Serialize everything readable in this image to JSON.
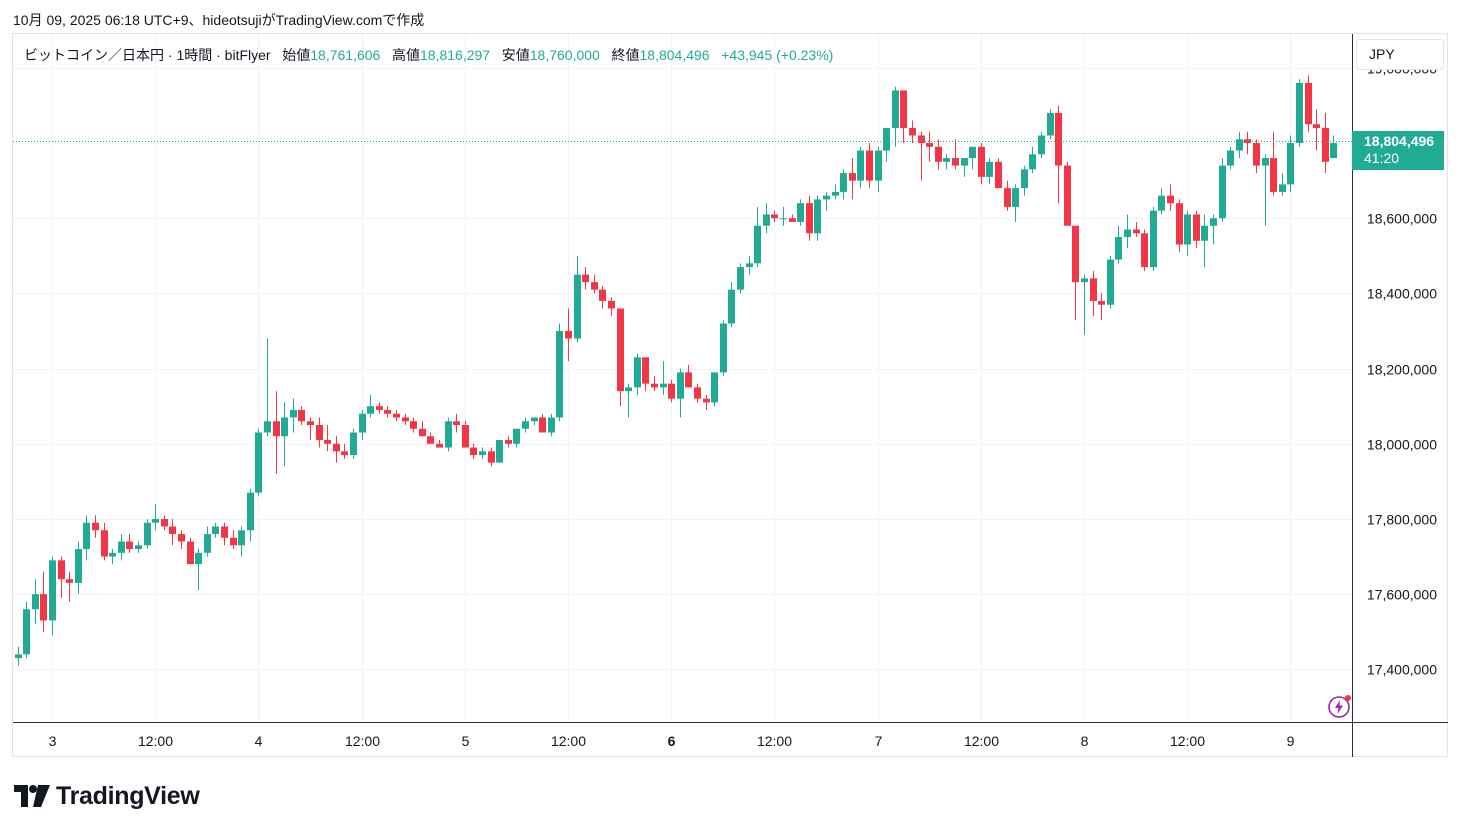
{
  "caption": "10月 09, 2025 06:18 UTC+9、hideotsujiがTradingView.comで作成",
  "legend": {
    "symbol": "ビットコイン／日本円 · 1時間 · bitFlyer",
    "open_label": "始値",
    "open": "18,761,606",
    "high_label": "高値",
    "high": "18,816,297",
    "low_label": "安値",
    "low": "18,760,000",
    "close_label": "終値",
    "close": "18,804,496",
    "change": "+43,945 (+0.23%)"
  },
  "currency": "JPY",
  "last_price": {
    "price": "18,804,496",
    "countdown": "41:20"
  },
  "brand": "TradingView",
  "colors": {
    "up": "#22ab94",
    "down": "#f23645",
    "grid": "#f0f3fa",
    "axis_text": "#131722",
    "accent": "#22ab94"
  },
  "chart_data": {
    "type": "candlestick",
    "ylim": [
      17260000,
      19090000
    ],
    "y_ticks": [
      17400000,
      17600000,
      17800000,
      18000000,
      18200000,
      18400000,
      18600000,
      18800000,
      19000000
    ],
    "y_tick_labels": [
      "17,400,000",
      "17,600,000",
      "17,800,000",
      "18,000,000",
      "18,200,000",
      "18,400,000",
      "18,600,000",
      "18,800,000",
      "19,000,000"
    ],
    "x_labels": [
      "3",
      "12:00",
      "4",
      "12:00",
      "5",
      "12:00",
      "6",
      "12:00",
      "7",
      "12:00",
      "8",
      "12:00",
      "9"
    ],
    "x_label_bars": [
      4,
      16,
      28,
      40,
      52,
      64,
      76,
      88,
      100,
      112,
      124,
      136,
      148
    ],
    "x_bold_labels": [
      "6"
    ],
    "last_price_value": 18804496,
    "candles": [
      [
        17430000,
        17460000,
        17410000,
        17440000
      ],
      [
        17440000,
        17580000,
        17430000,
        17560000
      ],
      [
        17560000,
        17640000,
        17520000,
        17600000
      ],
      [
        17600000,
        17660000,
        17500000,
        17530000
      ],
      [
        17530000,
        17700000,
        17490000,
        17690000
      ],
      [
        17690000,
        17700000,
        17590000,
        17640000
      ],
      [
        17640000,
        17660000,
        17580000,
        17630000
      ],
      [
        17630000,
        17740000,
        17600000,
        17720000
      ],
      [
        17720000,
        17810000,
        17690000,
        17790000
      ],
      [
        17790000,
        17810000,
        17750000,
        17770000
      ],
      [
        17770000,
        17790000,
        17690000,
        17700000
      ],
      [
        17700000,
        17720000,
        17680000,
        17710000
      ],
      [
        17710000,
        17760000,
        17690000,
        17740000
      ],
      [
        17740000,
        17760000,
        17710000,
        17720000
      ],
      [
        17720000,
        17740000,
        17710000,
        17730000
      ],
      [
        17730000,
        17800000,
        17720000,
        17790000
      ],
      [
        17790000,
        17840000,
        17770000,
        17800000
      ],
      [
        17800000,
        17810000,
        17770000,
        17780000
      ],
      [
        17780000,
        17800000,
        17730000,
        17760000
      ],
      [
        17760000,
        17770000,
        17720000,
        17740000
      ],
      [
        17740000,
        17750000,
        17680000,
        17680000
      ],
      [
        17680000,
        17720000,
        17610000,
        17710000
      ],
      [
        17710000,
        17780000,
        17700000,
        17760000
      ],
      [
        17760000,
        17790000,
        17750000,
        17780000
      ],
      [
        17780000,
        17790000,
        17730000,
        17750000
      ],
      [
        17750000,
        17770000,
        17720000,
        17730000
      ],
      [
        17730000,
        17780000,
        17700000,
        17770000
      ],
      [
        17770000,
        17880000,
        17740000,
        17870000
      ],
      [
        17870000,
        18040000,
        17860000,
        18030000
      ],
      [
        18030000,
        18280000,
        18020000,
        18060000
      ],
      [
        18060000,
        18140000,
        17920000,
        18020000
      ],
      [
        18020000,
        18110000,
        17940000,
        18070000
      ],
      [
        18070000,
        18120000,
        18030000,
        18090000
      ],
      [
        18090000,
        18100000,
        18050000,
        18060000
      ],
      [
        18060000,
        18070000,
        18010000,
        18050000
      ],
      [
        18050000,
        18070000,
        17990000,
        18010000
      ],
      [
        18010000,
        18050000,
        17980000,
        18000000
      ],
      [
        18000000,
        18020000,
        17950000,
        17980000
      ],
      [
        17980000,
        18000000,
        17960000,
        17970000
      ],
      [
        17970000,
        18040000,
        17960000,
        18030000
      ],
      [
        18030000,
        18090000,
        18010000,
        18080000
      ],
      [
        18080000,
        18130000,
        18070000,
        18100000
      ],
      [
        18100000,
        18110000,
        18080000,
        18090000
      ],
      [
        18090000,
        18100000,
        18070000,
        18080000
      ],
      [
        18080000,
        18090000,
        18060000,
        18070000
      ],
      [
        18070000,
        18080000,
        18050000,
        18060000
      ],
      [
        18060000,
        18070000,
        18030000,
        18040000
      ],
      [
        18040000,
        18060000,
        18020000,
        18020000
      ],
      [
        18020000,
        18030000,
        18000000,
        18000000
      ],
      [
        18000000,
        18010000,
        17990000,
        17990000
      ],
      [
        17990000,
        18070000,
        17980000,
        18060000
      ],
      [
        18060000,
        18080000,
        18030000,
        18050000
      ],
      [
        18050000,
        18060000,
        17990000,
        17990000
      ],
      [
        17990000,
        18000000,
        17960000,
        17970000
      ],
      [
        17970000,
        17990000,
        17960000,
        17980000
      ],
      [
        17980000,
        17990000,
        17940000,
        17950000
      ],
      [
        17950000,
        18010000,
        17950000,
        18010000
      ],
      [
        18010000,
        18020000,
        17990000,
        18000000
      ],
      [
        18000000,
        18040000,
        17990000,
        18040000
      ],
      [
        18040000,
        18070000,
        18030000,
        18060000
      ],
      [
        18060000,
        18070000,
        18050000,
        18070000
      ],
      [
        18070000,
        18080000,
        18030000,
        18030000
      ],
      [
        18030000,
        18080000,
        18020000,
        18070000
      ],
      [
        18070000,
        18320000,
        18060000,
        18300000
      ],
      [
        18300000,
        18360000,
        18220000,
        18280000
      ],
      [
        18280000,
        18500000,
        18270000,
        18450000
      ],
      [
        18450000,
        18470000,
        18410000,
        18430000
      ],
      [
        18430000,
        18450000,
        18400000,
        18410000
      ],
      [
        18410000,
        18420000,
        18360000,
        18380000
      ],
      [
        18380000,
        18390000,
        18340000,
        18360000
      ],
      [
        18360000,
        18360000,
        18100000,
        18140000
      ],
      [
        18140000,
        18160000,
        18070000,
        18150000
      ],
      [
        18150000,
        18240000,
        18130000,
        18230000
      ],
      [
        18230000,
        18230000,
        18140000,
        18160000
      ],
      [
        18160000,
        18180000,
        18140000,
        18150000
      ],
      [
        18150000,
        18220000,
        18130000,
        18160000
      ],
      [
        18160000,
        18170000,
        18110000,
        18120000
      ],
      [
        18120000,
        18200000,
        18070000,
        18190000
      ],
      [
        18190000,
        18210000,
        18150000,
        18150000
      ],
      [
        18150000,
        18160000,
        18110000,
        18120000
      ],
      [
        18120000,
        18130000,
        18090000,
        18110000
      ],
      [
        18110000,
        18190000,
        18100000,
        18190000
      ],
      [
        18190000,
        18330000,
        18180000,
        18320000
      ],
      [
        18320000,
        18430000,
        18310000,
        18410000
      ],
      [
        18410000,
        18480000,
        18400000,
        18470000
      ],
      [
        18470000,
        18500000,
        18450000,
        18480000
      ],
      [
        18480000,
        18630000,
        18470000,
        18580000
      ],
      [
        18580000,
        18640000,
        18560000,
        18610000
      ],
      [
        18610000,
        18620000,
        18590000,
        18600000
      ],
      [
        18600000,
        18630000,
        18580000,
        18600000
      ],
      [
        18600000,
        18610000,
        18590000,
        18590000
      ],
      [
        18590000,
        18650000,
        18580000,
        18640000
      ],
      [
        18640000,
        18660000,
        18540000,
        18560000
      ],
      [
        18560000,
        18660000,
        18540000,
        18650000
      ],
      [
        18650000,
        18670000,
        18620000,
        18660000
      ],
      [
        18660000,
        18690000,
        18650000,
        18670000
      ],
      [
        18670000,
        18730000,
        18650000,
        18720000
      ],
      [
        18720000,
        18760000,
        18650000,
        18700000
      ],
      [
        18700000,
        18790000,
        18680000,
        18780000
      ],
      [
        18780000,
        18800000,
        18680000,
        18700000
      ],
      [
        18700000,
        18790000,
        18670000,
        18780000
      ],
      [
        18780000,
        18840000,
        18750000,
        18840000
      ],
      [
        18840000,
        18950000,
        18790000,
        18940000
      ],
      [
        18940000,
        18930000,
        18800000,
        18840000
      ],
      [
        18840000,
        18860000,
        18800000,
        18820000
      ],
      [
        18820000,
        18830000,
        18700000,
        18800000
      ],
      [
        18800000,
        18830000,
        18750000,
        18790000
      ],
      [
        18790000,
        18810000,
        18730000,
        18750000
      ],
      [
        18750000,
        18770000,
        18730000,
        18760000
      ],
      [
        18760000,
        18810000,
        18730000,
        18740000
      ],
      [
        18740000,
        18760000,
        18710000,
        18760000
      ],
      [
        18760000,
        18790000,
        18730000,
        18790000
      ],
      [
        18790000,
        18800000,
        18690000,
        18710000
      ],
      [
        18710000,
        18760000,
        18690000,
        18750000
      ],
      [
        18750000,
        18760000,
        18690000,
        18680000
      ],
      [
        18680000,
        18700000,
        18620000,
        18630000
      ],
      [
        18630000,
        18690000,
        18590000,
        18680000
      ],
      [
        18680000,
        18740000,
        18660000,
        18730000
      ],
      [
        18730000,
        18790000,
        18720000,
        18770000
      ],
      [
        18770000,
        18830000,
        18760000,
        18820000
      ],
      [
        18820000,
        18890000,
        18810000,
        18880000
      ],
      [
        18880000,
        18900000,
        18640000,
        18740000
      ],
      [
        18740000,
        18750000,
        18580000,
        18580000
      ],
      [
        18580000,
        18580000,
        18330000,
        18430000
      ],
      [
        18430000,
        18450000,
        18290000,
        18440000
      ],
      [
        18440000,
        18460000,
        18340000,
        18380000
      ],
      [
        18380000,
        18400000,
        18330000,
        18370000
      ],
      [
        18370000,
        18500000,
        18360000,
        18490000
      ],
      [
        18490000,
        18580000,
        18480000,
        18550000
      ],
      [
        18550000,
        18610000,
        18520000,
        18570000
      ],
      [
        18570000,
        18590000,
        18550000,
        18560000
      ],
      [
        18560000,
        18570000,
        18460000,
        18470000
      ],
      [
        18470000,
        18630000,
        18460000,
        18620000
      ],
      [
        18620000,
        18680000,
        18610000,
        18660000
      ],
      [
        18660000,
        18690000,
        18620000,
        18640000
      ],
      [
        18640000,
        18650000,
        18510000,
        18530000
      ],
      [
        18530000,
        18620000,
        18500000,
        18610000
      ],
      [
        18610000,
        18620000,
        18520000,
        18540000
      ],
      [
        18540000,
        18610000,
        18470000,
        18580000
      ],
      [
        18580000,
        18610000,
        18530000,
        18600000
      ],
      [
        18600000,
        18760000,
        18590000,
        18740000
      ],
      [
        18740000,
        18790000,
        18730000,
        18780000
      ],
      [
        18780000,
        18830000,
        18760000,
        18810000
      ],
      [
        18810000,
        18830000,
        18770000,
        18800000
      ],
      [
        18800000,
        18810000,
        18720000,
        18740000
      ],
      [
        18740000,
        18770000,
        18580000,
        18760000
      ],
      [
        18760000,
        18830000,
        18660000,
        18670000
      ],
      [
        18670000,
        18720000,
        18660000,
        18690000
      ],
      [
        18690000,
        18820000,
        18670000,
        18800000
      ],
      [
        18800000,
        18970000,
        18790000,
        18960000
      ],
      [
        18960000,
        18980000,
        18830000,
        18850000
      ],
      [
        18850000,
        18890000,
        18780000,
        18840000
      ],
      [
        18840000,
        18880000,
        18720000,
        18750000
      ],
      [
        18760000,
        18820000,
        18760000,
        18800000
      ]
    ]
  }
}
